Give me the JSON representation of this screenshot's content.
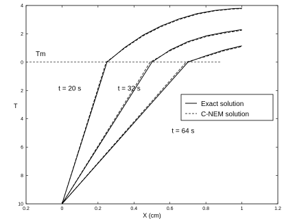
{
  "chart_data": {
    "type": "line",
    "xlabel": "X (cm)",
    "ylabel": "T",
    "xlim": [
      -0.2,
      1.2
    ],
    "ylim": [
      -10,
      4
    ],
    "xticks": [
      -0.2,
      0,
      0.2,
      0.4,
      0.6,
      0.8,
      1,
      1.2
    ],
    "xtick_labels": [
      "0.2",
      "0",
      "0.2",
      "0.4",
      "0.6",
      "0.8",
      "1",
      "1.2"
    ],
    "yticks": [
      -10,
      -8,
      -6,
      -4,
      -2,
      0,
      2,
      4
    ],
    "ytick_labels": [
      "10",
      "8",
      "6",
      "4",
      "2",
      "0",
      "2",
      "4"
    ],
    "grid": false,
    "legend_position": "right",
    "reference_line": {
      "label": "Tm",
      "y": 0,
      "x_range": [
        -0.2,
        0.88
      ]
    },
    "annotations": [
      {
        "text": "t = 20 s",
        "x": -0.02,
        "y": -2.0
      },
      {
        "text": "t = 32 s",
        "x": 0.31,
        "y": -2.0
      },
      {
        "text": "t = 64 s",
        "x": 0.61,
        "y": -5.0
      }
    ],
    "series": [
      {
        "name": "Exact solution",
        "style": "solid",
        "curves": [
          {
            "x": [
              0,
              0.25,
              0.35,
              0.45,
              0.55,
              0.65,
              0.75,
              0.85,
              0.95,
              1.0
            ],
            "y": [
              -10,
              0,
              1.05,
              1.9,
              2.55,
              3.05,
              3.42,
              3.65,
              3.78,
              3.8
            ]
          },
          {
            "x": [
              0,
              0.5,
              0.6,
              0.7,
              0.8,
              0.9,
              1.0
            ],
            "y": [
              -10,
              0,
              0.85,
              1.45,
              1.85,
              2.1,
              2.3
            ]
          },
          {
            "x": [
              0,
              0.7,
              0.8,
              0.9,
              1.0
            ],
            "y": [
              -10,
              0,
              0.45,
              0.85,
              1.15
            ]
          }
        ]
      },
      {
        "name": "C-NEM solution",
        "style": "dashed",
        "curves": [
          {
            "x": [
              0,
              0.245,
              0.35,
              0.45,
              0.55,
              0.65,
              0.75,
              0.85,
              0.95,
              1.0
            ],
            "y": [
              -10,
              0,
              1.0,
              1.85,
              2.5,
              3.0,
              3.38,
              3.62,
              3.75,
              3.77
            ]
          },
          {
            "x": [
              0,
              0.49,
              0.6,
              0.7,
              0.8,
              0.9,
              1.0
            ],
            "y": [
              -10,
              0,
              0.8,
              1.4,
              1.8,
              2.05,
              2.25
            ]
          },
          {
            "x": [
              0,
              0.69,
              0.8,
              0.9,
              1.0
            ],
            "y": [
              -10,
              0,
              0.4,
              0.8,
              1.1
            ]
          }
        ]
      }
    ]
  }
}
